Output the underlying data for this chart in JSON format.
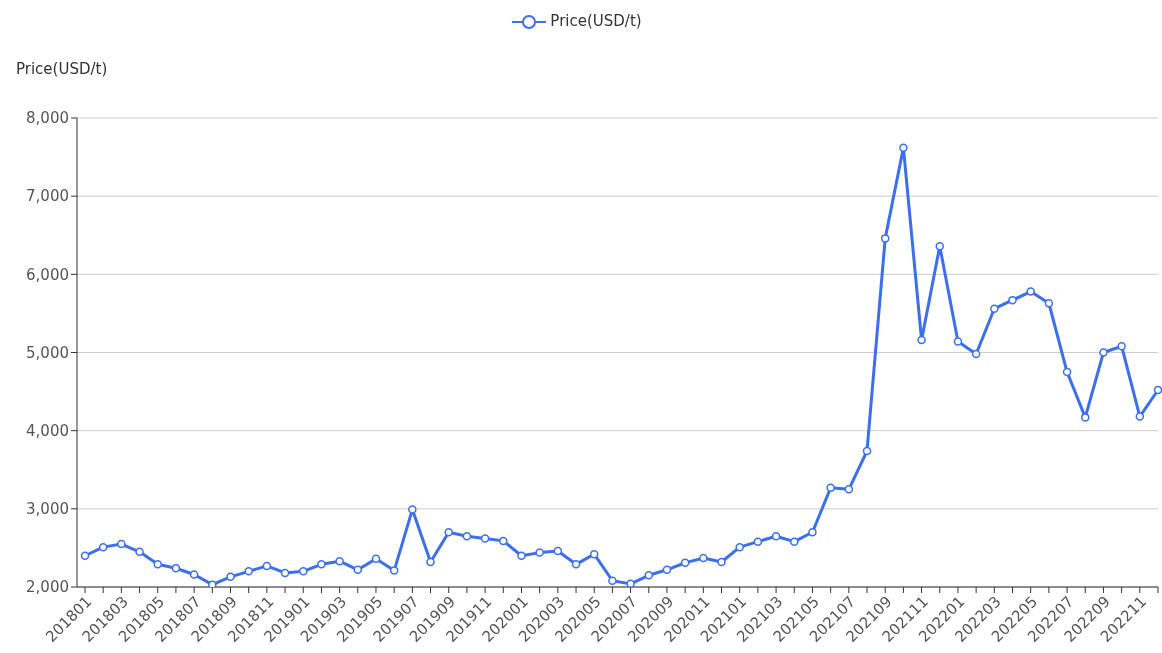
{
  "chart_data": {
    "type": "line",
    "ylabel": "Price(USD/t)",
    "categories": [
      "201801",
      null,
      "201803",
      null,
      "201805",
      null,
      "201807",
      null,
      "201809",
      null,
      "201811",
      null,
      "201901",
      null,
      "201903",
      null,
      "201905",
      null,
      "201907",
      null,
      "201909",
      null,
      "201911",
      null,
      "202001",
      null,
      "202003",
      null,
      "202005",
      null,
      "202007",
      null,
      "202009",
      null,
      "202011",
      null,
      "202101",
      null,
      "202103",
      null,
      "202105",
      null,
      "202107",
      null,
      "202109",
      null,
      "202111",
      null,
      "202201",
      null,
      "202203",
      null,
      "202205",
      null,
      "202207",
      null,
      "202209",
      null,
      "202211",
      null
    ],
    "series": [
      {
        "name": "Price(USD/t)",
        "color": "#3b6ff0",
        "values": [
          2400,
          2510,
          2550,
          2450,
          2290,
          2240,
          2160,
          2030,
          2130,
          2200,
          2270,
          2180,
          2200,
          2290,
          2330,
          2220,
          2360,
          2210,
          2990,
          2320,
          2700,
          2650,
          2620,
          2590,
          2400,
          2440,
          2460,
          2290,
          2420,
          2080,
          2040,
          2150,
          2220,
          2310,
          2370,
          2320,
          2510,
          2580,
          2650,
          2580,
          2700,
          3270,
          3250,
          3740,
          6460,
          7620,
          5160,
          6360,
          5140,
          4980,
          5560,
          5670,
          5780,
          5630,
          4750,
          4170,
          5000,
          5080,
          4180,
          4520
        ]
      }
    ],
    "ylim": [
      2000,
      8000
    ],
    "yticks": [
      {
        "value": 2000,
        "label": "2,000"
      },
      {
        "value": 3000,
        "label": "3,000"
      },
      {
        "value": 4000,
        "label": "4,000"
      },
      {
        "value": 5000,
        "label": "5,000"
      },
      {
        "value": 6000,
        "label": "6,000"
      },
      {
        "value": 7000,
        "label": "7,000"
      },
      {
        "value": 8000,
        "label": "8,000"
      }
    ],
    "grid": "y",
    "legend": "top",
    "marker": "circle",
    "line_style": "solid"
  }
}
